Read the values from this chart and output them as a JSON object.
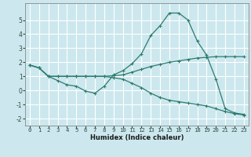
{
  "xlabel": "Humidex (Indice chaleur)",
  "background_color": "#cce8ee",
  "grid_color": "#ffffff",
  "line_color": "#2d7b6e",
  "xlim": [
    -0.5,
    23.5
  ],
  "ylim": [
    -2.5,
    6.2
  ],
  "yticks": [
    -2,
    -1,
    0,
    1,
    2,
    3,
    4,
    5
  ],
  "xticks": [
    0,
    1,
    2,
    3,
    4,
    5,
    6,
    7,
    8,
    9,
    10,
    11,
    12,
    13,
    14,
    15,
    16,
    17,
    18,
    19,
    20,
    21,
    22,
    23
  ],
  "line1_x": [
    0,
    1,
    2,
    3,
    4,
    5,
    6,
    7,
    8,
    9,
    10,
    11,
    12,
    13,
    14,
    15,
    16,
    17,
    18,
    19,
    20,
    21,
    22,
    23
  ],
  "line1_y": [
    1.8,
    1.6,
    1.0,
    0.7,
    0.4,
    0.3,
    -0.05,
    -0.2,
    0.3,
    1.1,
    1.4,
    1.9,
    2.6,
    3.9,
    4.6,
    5.5,
    5.5,
    5.0,
    3.5,
    2.5,
    0.8,
    -1.3,
    -1.6,
    -1.7
  ],
  "line2_x": [
    0,
    1,
    2,
    3,
    4,
    5,
    6,
    7,
    8,
    9,
    10,
    11,
    12,
    13,
    14,
    15,
    16,
    17,
    18,
    19,
    20,
    21,
    22,
    23
  ],
  "line2_y": [
    1.8,
    1.6,
    1.0,
    1.0,
    1.0,
    1.0,
    1.0,
    1.0,
    1.0,
    1.05,
    1.1,
    1.3,
    1.5,
    1.7,
    1.85,
    2.0,
    2.1,
    2.2,
    2.3,
    2.35,
    2.4,
    2.4,
    2.4,
    2.4
  ],
  "line3_x": [
    0,
    1,
    2,
    3,
    4,
    5,
    6,
    7,
    8,
    9,
    10,
    11,
    12,
    13,
    14,
    15,
    16,
    17,
    18,
    19,
    20,
    21,
    22,
    23
  ],
  "line3_y": [
    1.8,
    1.6,
    1.0,
    1.0,
    1.0,
    1.0,
    1.0,
    1.0,
    1.0,
    0.9,
    0.8,
    0.5,
    0.2,
    -0.2,
    -0.5,
    -0.7,
    -0.8,
    -0.9,
    -1.0,
    -1.1,
    -1.3,
    -1.5,
    -1.65,
    -1.75
  ],
  "xlabel_fontsize": 6.0,
  "tick_fontsize": 5.2,
  "ytick_fontsize": 5.5
}
